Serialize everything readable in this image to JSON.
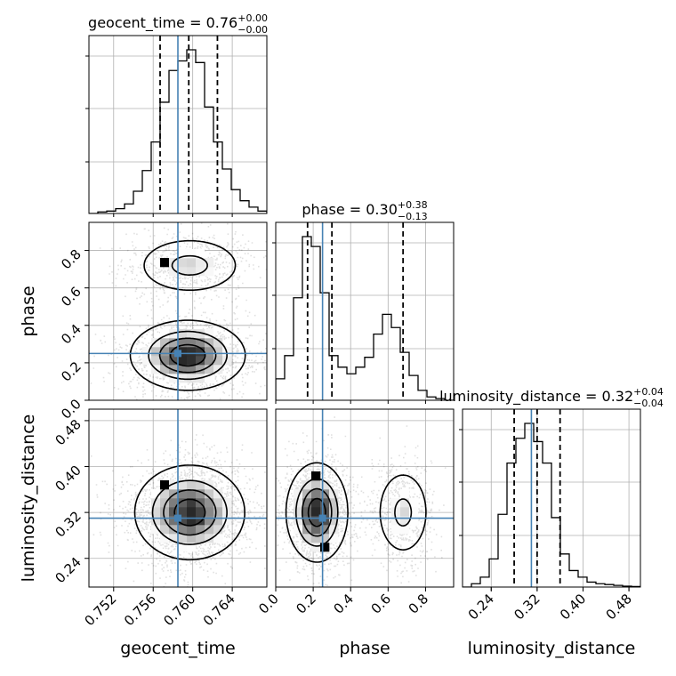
{
  "chart_data": {
    "type": "corner",
    "parameters": [
      "geocent_time",
      "phase",
      "luminosity_distance"
    ],
    "injection": {
      "geocent_time": 0.7585,
      "phase": 0.25,
      "luminosity_distance": 0.31
    },
    "axes": {
      "geocent_time": {
        "range": [
          0.7495,
          0.7675
        ],
        "ticks": [
          0.752,
          0.756,
          0.76,
          0.764
        ],
        "tick_labels": [
          "0.752",
          "0.756",
          "0.760",
          "0.764"
        ]
      },
      "phase": {
        "range": [
          0.0,
          0.95
        ],
        "ticks": [
          0.0,
          0.2,
          0.4,
          0.6,
          0.8
        ],
        "tick_labels": [
          "0.0",
          "0.2",
          "0.4",
          "0.6",
          "0.8"
        ]
      },
      "luminosity_distance": {
        "range": [
          0.19,
          0.5
        ],
        "ticks": [
          0.24,
          0.32,
          0.4,
          0.48
        ],
        "tick_labels": [
          "0.24",
          "0.32",
          "0.40",
          "0.48"
        ]
      }
    },
    "marginals": [
      {
        "parameter": "geocent_time",
        "title": {
          "base": "geocent_time = 0.76",
          "sup": "+0.00",
          "sub": "−0.00"
        },
        "quantiles": [
          0.7567,
          0.7596,
          0.7625
        ],
        "hist_rel": [
          0.0,
          0.01,
          0.015,
          0.03,
          0.06,
          0.14,
          0.27,
          0.45,
          0.7,
          0.9,
          0.96,
          1.03,
          0.95,
          0.67,
          0.45,
          0.28,
          0.15,
          0.08,
          0.04,
          0.015
        ]
      },
      {
        "parameter": "phase",
        "title": {
          "base": "phase = 0.30",
          "sup": "+0.38",
          "sub": "−0.13"
        },
        "quantiles": [
          0.17,
          0.3,
          0.68
        ],
        "hist_rel": [
          0.13,
          0.27,
          0.62,
          0.99,
          0.93,
          0.65,
          0.27,
          0.2,
          0.16,
          0.2,
          0.26,
          0.4,
          0.52,
          0.44,
          0.29,
          0.15,
          0.06,
          0.02,
          0.01,
          0.0
        ]
      },
      {
        "parameter": "luminosity_distance",
        "title": {
          "base": "luminosity_distance = 0.32",
          "sup": "+0.04",
          "sub": "−0.04"
        },
        "quantiles": [
          0.28,
          0.32,
          0.36
        ],
        "hist_rel": [
          0.0,
          0.02,
          0.06,
          0.17,
          0.44,
          0.75,
          0.9,
          0.99,
          0.88,
          0.75,
          0.42,
          0.2,
          0.1,
          0.06,
          0.03,
          0.02,
          0.015,
          0.01,
          0.005,
          0.003
        ]
      }
    ],
    "joints": [
      {
        "x": "geocent_time",
        "y": "phase",
        "modes": [
          {
            "cx": 0.7595,
            "cy": 0.24,
            "sx": 0.0028,
            "sy": 0.09,
            "w": 1.0
          },
          {
            "cx": 0.7597,
            "cy": 0.72,
            "sx": 0.0028,
            "sy": 0.08,
            "w": 0.45
          }
        ]
      },
      {
        "x": "geocent_time",
        "y": "luminosity_distance",
        "modes": [
          {
            "cx": 0.7597,
            "cy": 0.32,
            "sx": 0.0027,
            "sy": 0.04,
            "w": 1.0
          }
        ]
      },
      {
        "x": "phase",
        "y": "luminosity_distance",
        "modes": [
          {
            "cx": 0.22,
            "cy": 0.32,
            "sx": 0.08,
            "sy": 0.042,
            "w": 1.0
          },
          {
            "cx": 0.68,
            "cy": 0.32,
            "sx": 0.075,
            "sy": 0.04,
            "w": 0.45
          }
        ]
      }
    ],
    "legend": "none",
    "grid": true
  }
}
